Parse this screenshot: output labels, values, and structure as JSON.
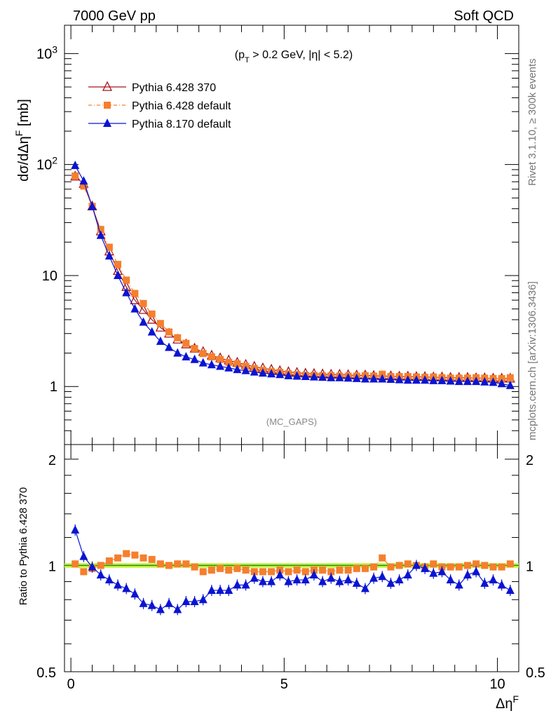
{
  "header": {
    "left": "7000 GeV pp",
    "right": "Soft QCD"
  },
  "side_text": {
    "rivet": "Rivet 3.1.10, ≥ 300k events",
    "mcplots": "mcplots.cern.ch [arXiv:1306.3436]"
  },
  "annotation": {
    "cut": "(p_T > 0.2 GeV, |η| < 5.2)",
    "analysis": "(MC_GAPS)"
  },
  "colors": {
    "p6_370": "#a3161c",
    "p6_default": "#f57f2c",
    "p8_default": "#0a14d2",
    "ratio_band": "#c5f542",
    "ratio_line": "#2b8a1a"
  },
  "chart_data": [
    {
      "type": "scatter",
      "panel": "main",
      "ylabel": "dσ/dΔη^F [mb]",
      "xlim": [
        -0.15,
        10.5
      ],
      "ylim": [
        0.3,
        1800
      ],
      "yscale": "log",
      "ytick_labels": [
        "1",
        "10",
        "10^2",
        "10^3"
      ],
      "legend_position": "top-left",
      "x": [
        0.1,
        0.3,
        0.5,
        0.7,
        0.9,
        1.1,
        1.3,
        1.5,
        1.7,
        1.9,
        2.1,
        2.3,
        2.5,
        2.7,
        2.9,
        3.1,
        3.3,
        3.5,
        3.7,
        3.9,
        4.1,
        4.3,
        4.5,
        4.7,
        4.9,
        5.1,
        5.3,
        5.5,
        5.7,
        5.9,
        6.1,
        6.3,
        6.5,
        6.7,
        6.9,
        7.1,
        7.3,
        7.5,
        7.7,
        7.9,
        8.1,
        8.3,
        8.5,
        8.7,
        8.9,
        9.1,
        9.3,
        9.5,
        9.7,
        9.9,
        10.1,
        10.3
      ],
      "series": [
        {
          "name": "Pythia 6.428 370",
          "marker": "open-triangle",
          "values": [
            78,
            67,
            42,
            25,
            16.5,
            11,
            7.9,
            6.0,
            4.9,
            4.0,
            3.4,
            3.0,
            2.65,
            2.4,
            2.2,
            2.05,
            1.9,
            1.8,
            1.72,
            1.64,
            1.57,
            1.51,
            1.46,
            1.42,
            1.38,
            1.35,
            1.33,
            1.31,
            1.3,
            1.29,
            1.28,
            1.28,
            1.27,
            1.26,
            1.26,
            1.25,
            1.24,
            1.24,
            1.23,
            1.23,
            1.22,
            1.22,
            1.21,
            1.21,
            1.2,
            1.2,
            1.2,
            1.19,
            1.19,
            1.18,
            1.18,
            1.18
          ]
        },
        {
          "name": "Pythia 6.428 default",
          "marker": "square",
          "values": [
            79,
            64,
            42,
            26,
            18,
            12.6,
            9.1,
            6.9,
            5.6,
            4.5,
            3.7,
            3.1,
            2.75,
            2.45,
            2.2,
            1.98,
            1.85,
            1.75,
            1.65,
            1.6,
            1.52,
            1.45,
            1.4,
            1.36,
            1.34,
            1.3,
            1.28,
            1.26,
            1.26,
            1.25,
            1.25,
            1.24,
            1.24,
            1.24,
            1.25,
            1.24,
            1.29,
            1.23,
            1.23,
            1.23,
            1.22,
            1.21,
            1.22,
            1.2,
            1.19,
            1.19,
            1.19,
            1.2,
            1.19,
            1.18,
            1.18,
            1.2
          ]
        },
        {
          "name": "Pythia 8.170 default",
          "marker": "filled-triangle",
          "values": [
            98,
            71,
            42,
            23,
            15,
            10,
            7.0,
            5.0,
            3.8,
            3.1,
            2.55,
            2.25,
            2.0,
            1.85,
            1.75,
            1.63,
            1.57,
            1.52,
            1.47,
            1.42,
            1.39,
            1.35,
            1.32,
            1.3,
            1.28,
            1.25,
            1.24,
            1.23,
            1.22,
            1.21,
            1.2,
            1.2,
            1.19,
            1.18,
            1.17,
            1.17,
            1.17,
            1.16,
            1.15,
            1.14,
            1.14,
            1.14,
            1.13,
            1.13,
            1.12,
            1.11,
            1.11,
            1.11,
            1.1,
            1.09,
            1.06,
            1.02
          ]
        }
      ]
    },
    {
      "type": "scatter",
      "panel": "ratio",
      "xlabel": "Δη^F",
      "ylabel": "Ratio to Pythia 6.428 370",
      "xlim": [
        -0.15,
        10.5
      ],
      "ylim": [
        0.5,
        2.2
      ],
      "yscale": "log",
      "ytick_labels": [
        "0.5",
        "1",
        "2"
      ],
      "xtick_labels": [
        "0",
        "5",
        "10"
      ],
      "reference": 1.0,
      "band": [
        0.985,
        1.015
      ],
      "x": [
        0.1,
        0.3,
        0.5,
        0.7,
        0.9,
        1.1,
        1.3,
        1.5,
        1.7,
        1.9,
        2.1,
        2.3,
        2.5,
        2.7,
        2.9,
        3.1,
        3.3,
        3.5,
        3.7,
        3.9,
        4.1,
        4.3,
        4.5,
        4.7,
        4.9,
        5.1,
        5.3,
        5.5,
        5.7,
        5.9,
        6.1,
        6.3,
        6.5,
        6.7,
        6.9,
        7.1,
        7.3,
        7.5,
        7.7,
        7.9,
        8.1,
        8.3,
        8.5,
        8.7,
        8.9,
        9.1,
        9.3,
        9.5,
        9.7,
        9.9,
        10.1,
        10.3
      ],
      "series": [
        {
          "name": "Pythia 6.428 default",
          "marker": "square",
          "values": [
            1.01,
            0.96,
            0.98,
            1.0,
            1.03,
            1.05,
            1.08,
            1.07,
            1.05,
            1.04,
            1.01,
            1.0,
            1.01,
            1.01,
            0.99,
            0.96,
            0.97,
            0.98,
            0.97,
            0.98,
            0.97,
            0.96,
            0.96,
            0.96,
            0.97,
            0.96,
            0.97,
            0.96,
            0.97,
            0.97,
            0.96,
            0.97,
            0.97,
            0.98,
            0.98,
            0.99,
            1.05,
            0.99,
            1.0,
            1.01,
            1.0,
            0.99,
            1.01,
            0.99,
            0.99,
            0.99,
            1.0,
            1.01,
            1.0,
            0.99,
            0.99,
            1.01
          ]
        },
        {
          "name": "Pythia 8.170 default",
          "marker": "filled-triangle",
          "values": [
            1.26,
            1.06,
            0.99,
            0.94,
            0.91,
            0.88,
            0.86,
            0.83,
            0.78,
            0.77,
            0.75,
            0.78,
            0.75,
            0.79,
            0.79,
            0.8,
            0.85,
            0.85,
            0.85,
            0.88,
            0.88,
            0.92,
            0.9,
            0.9,
            0.94,
            0.9,
            0.91,
            0.91,
            0.94,
            0.9,
            0.92,
            0.9,
            0.91,
            0.89,
            0.86,
            0.92,
            0.93,
            0.89,
            0.91,
            0.94,
            1.0,
            0.98,
            0.95,
            0.96,
            0.91,
            0.88,
            0.94,
            0.96,
            0.89,
            0.91,
            0.88,
            0.85
          ]
        }
      ]
    }
  ]
}
